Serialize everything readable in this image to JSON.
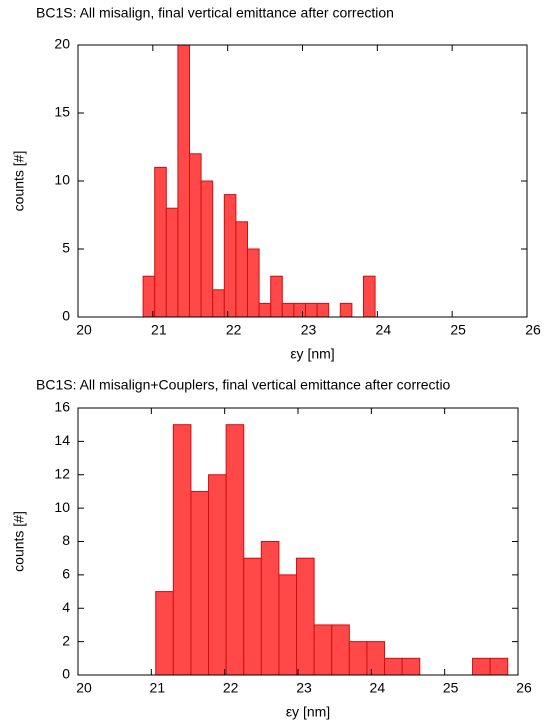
{
  "chart_data": [
    {
      "type": "histogram",
      "title": "BC1S: All misalign, final vertical emittance after correction",
      "x_label": "εy [nm]",
      "y_label": "counts [#]",
      "bins": [
        20.87,
        21.025,
        21.18,
        21.335,
        21.49,
        21.645,
        21.8,
        21.955,
        22.11,
        22.265,
        22.42,
        22.575,
        22.73,
        22.885,
        23.04,
        23.195,
        23.35,
        23.505,
        23.66,
        23.815,
        23.97
      ],
      "values": [
        3,
        11,
        8,
        20,
        12,
        10,
        2,
        9,
        7,
        5,
        1,
        3,
        1,
        1,
        1,
        1,
        0,
        1,
        0,
        3
      ],
      "color": "#ff4848",
      "xlim": [
        20,
        26
      ],
      "xticks": [
        20,
        21,
        22,
        23,
        24,
        25,
        26
      ],
      "ylim": [
        0,
        20
      ],
      "yticks": [
        0,
        5,
        10,
        15,
        20
      ]
    },
    {
      "type": "histogram",
      "title": "BC1S: All misalign+Couplers, final vertical emittance after correctio",
      "x_label": "εy [nm]",
      "y_label": "counts [#]",
      "bins": [
        21.06,
        21.3,
        21.54,
        21.78,
        22.02,
        22.26,
        22.5,
        22.74,
        22.98,
        23.22,
        23.46,
        23.7,
        23.94,
        24.18,
        24.42,
        24.66,
        24.9,
        25.14,
        25.38,
        25.62,
        25.86
      ],
      "values": [
        5,
        15,
        11,
        12,
        15,
        7,
        8,
        6,
        7,
        3,
        3,
        2,
        2,
        1,
        1,
        0,
        0,
        0,
        1,
        1
      ],
      "color": "#ff4848",
      "xlim": [
        20,
        26
      ],
      "xticks": [
        20,
        21,
        22,
        23,
        24,
        25,
        26
      ],
      "ylim": [
        0,
        16
      ],
      "yticks": [
        0,
        2,
        4,
        6,
        8,
        10,
        12,
        14,
        16
      ]
    }
  ]
}
